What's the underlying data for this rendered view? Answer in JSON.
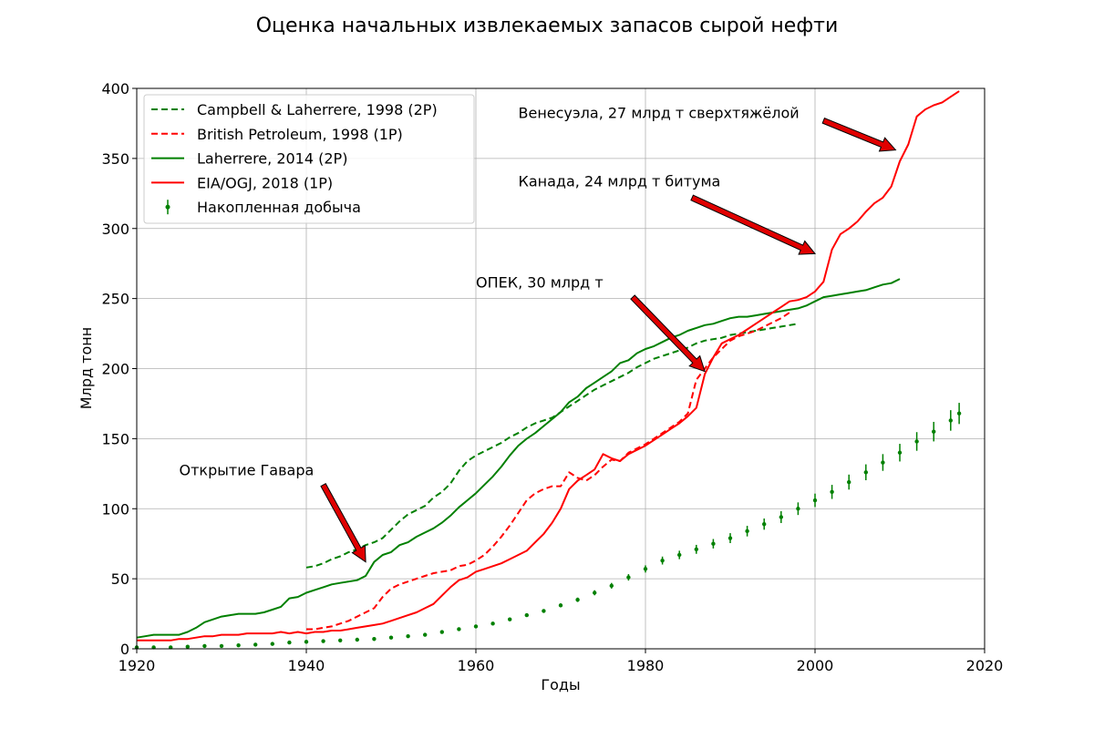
{
  "chart_data": {
    "type": "line",
    "title": "Оценка начальных извлекаемых запасов сырой нефти",
    "xlabel": "Годы",
    "ylabel": "Млрд тонн",
    "xlim": [
      1920,
      2020
    ],
    "ylim": [
      0,
      400
    ],
    "xticks": [
      1920,
      1940,
      1960,
      1980,
      2000,
      2020
    ],
    "yticks": [
      0,
      50,
      100,
      150,
      200,
      250,
      300,
      350,
      400
    ],
    "grid": true,
    "legend_position": "top-left",
    "series": [
      {
        "name": "Campbell & Laherrere, 1998 (2P)",
        "color": "#008000",
        "style": "dashed",
        "x": [
          1940,
          1941,
          1942,
          1943,
          1944,
          1945,
          1946,
          1947,
          1948,
          1949,
          1950,
          1951,
          1952,
          1953,
          1954,
          1955,
          1956,
          1957,
          1958,
          1959,
          1960,
          1961,
          1962,
          1963,
          1964,
          1965,
          1966,
          1967,
          1968,
          1969,
          1970,
          1971,
          1972,
          1973,
          1974,
          1975,
          1976,
          1977,
          1978,
          1979,
          1980,
          1981,
          1982,
          1983,
          1984,
          1985,
          1986,
          1987,
          1988,
          1989,
          1990,
          1991,
          1992,
          1993,
          1994,
          1995,
          1996,
          1997,
          1998
        ],
        "y": [
          58,
          59,
          61,
          64,
          66,
          69,
          71,
          74,
          76,
          79,
          85,
          91,
          96,
          99,
          102,
          108,
          112,
          118,
          127,
          134,
          138,
          141,
          144,
          147,
          151,
          154,
          158,
          161,
          163,
          165,
          169,
          173,
          177,
          181,
          185,
          188,
          191,
          194,
          197,
          201,
          204,
          207,
          209,
          211,
          213,
          215,
          218,
          220,
          221,
          222,
          224,
          225,
          226,
          227,
          228,
          229,
          230,
          231,
          232
        ]
      },
      {
        "name": "British Petroleum, 1998 (1P)",
        "color": "#ff0000",
        "style": "dashed",
        "x": [
          1940,
          1941,
          1942,
          1943,
          1944,
          1945,
          1946,
          1947,
          1948,
          1949,
          1950,
          1951,
          1952,
          1953,
          1954,
          1955,
          1956,
          1957,
          1958,
          1959,
          1960,
          1961,
          1962,
          1963,
          1964,
          1965,
          1966,
          1967,
          1968,
          1969,
          1970,
          1971,
          1972,
          1973,
          1974,
          1975,
          1976,
          1977,
          1978,
          1979,
          1980,
          1981,
          1982,
          1983,
          1984,
          1985,
          1986,
          1987,
          1988,
          1989,
          1990,
          1991,
          1992,
          1993,
          1994,
          1995,
          1996,
          1997
        ],
        "y": [
          14,
          14,
          15,
          16,
          18,
          20,
          23,
          26,
          29,
          37,
          43,
          46,
          48,
          50,
          52,
          54,
          55,
          56,
          59,
          60,
          63,
          67,
          73,
          80,
          88,
          97,
          106,
          111,
          114,
          116,
          116,
          126,
          122,
          120,
          124,
          130,
          135,
          134,
          140,
          143,
          146,
          150,
          154,
          158,
          162,
          168,
          192,
          200,
          208,
          214,
          220,
          223,
          225,
          227,
          230,
          233,
          236,
          240
        ]
      },
      {
        "name": "Laherrere, 2014 (2P)",
        "color": "#008000",
        "style": "solid",
        "x": [
          1920,
          1921,
          1922,
          1923,
          1924,
          1925,
          1926,
          1927,
          1928,
          1929,
          1930,
          1931,
          1932,
          1933,
          1934,
          1935,
          1936,
          1937,
          1938,
          1939,
          1940,
          1941,
          1942,
          1943,
          1944,
          1945,
          1946,
          1947,
          1948,
          1949,
          1950,
          1951,
          1952,
          1953,
          1954,
          1955,
          1956,
          1957,
          1958,
          1959,
          1960,
          1961,
          1962,
          1963,
          1964,
          1965,
          1966,
          1967,
          1968,
          1969,
          1970,
          1971,
          1972,
          1973,
          1974,
          1975,
          1976,
          1977,
          1978,
          1979,
          1980,
          1981,
          1982,
          1983,
          1984,
          1985,
          1986,
          1987,
          1988,
          1989,
          1990,
          1991,
          1992,
          1993,
          1994,
          1995,
          1996,
          1997,
          1998,
          1999,
          2000,
          2001,
          2002,
          2003,
          2004,
          2005,
          2006,
          2007,
          2008,
          2009,
          2010
        ],
        "y": [
          8,
          9,
          10,
          10,
          10,
          10,
          12,
          15,
          19,
          21,
          23,
          24,
          25,
          25,
          25,
          26,
          28,
          30,
          36,
          37,
          40,
          42,
          44,
          46,
          47,
          48,
          49,
          52,
          62,
          67,
          69,
          74,
          76,
          80,
          83,
          86,
          90,
          95,
          101,
          106,
          111,
          117,
          123,
          130,
          138,
          145,
          150,
          154,
          159,
          164,
          169,
          176,
          180,
          186,
          190,
          194,
          198,
          204,
          206,
          211,
          214,
          216,
          219,
          222,
          224,
          227,
          229,
          231,
          232,
          234,
          236,
          237,
          237,
          238,
          239,
          240,
          241,
          242,
          243,
          245,
          248,
          251,
          252,
          253,
          254,
          255,
          256,
          258,
          260,
          261,
          264
        ]
      },
      {
        "name": "EIA/OGJ, 2018 (1P)",
        "color": "#ff0000",
        "style": "solid",
        "x": [
          1920,
          1921,
          1922,
          1923,
          1924,
          1925,
          1926,
          1927,
          1928,
          1929,
          1930,
          1931,
          1932,
          1933,
          1934,
          1935,
          1936,
          1937,
          1938,
          1939,
          1940,
          1941,
          1942,
          1943,
          1944,
          1945,
          1946,
          1947,
          1948,
          1949,
          1950,
          1951,
          1952,
          1953,
          1954,
          1955,
          1956,
          1957,
          1958,
          1959,
          1960,
          1961,
          1962,
          1963,
          1964,
          1965,
          1966,
          1967,
          1968,
          1969,
          1970,
          1971,
          1972,
          1973,
          1974,
          1975,
          1976,
          1977,
          1978,
          1979,
          1980,
          1981,
          1982,
          1983,
          1984,
          1985,
          1986,
          1987,
          1988,
          1989,
          1990,
          1991,
          1992,
          1993,
          1994,
          1995,
          1996,
          1997,
          1998,
          1999,
          2000,
          2001,
          2002,
          2003,
          2004,
          2005,
          2006,
          2007,
          2008,
          2009,
          2010,
          2011,
          2012,
          2013,
          2014,
          2015,
          2016,
          2017
        ],
        "y": [
          6,
          6,
          6,
          6,
          6,
          7,
          7,
          8,
          9,
          9,
          10,
          10,
          10,
          11,
          11,
          11,
          11,
          12,
          11,
          12,
          11,
          12,
          12,
          13,
          13,
          14,
          15,
          16,
          17,
          18,
          20,
          22,
          24,
          26,
          29,
          32,
          38,
          44,
          49,
          51,
          55,
          57,
          59,
          61,
          64,
          67,
          70,
          76,
          82,
          90,
          100,
          114,
          120,
          124,
          128,
          139,
          136,
          134,
          139,
          142,
          145,
          149,
          153,
          157,
          161,
          166,
          172,
          196,
          208,
          218,
          221,
          224,
          228,
          232,
          236,
          240,
          244,
          248,
          249,
          251,
          255,
          262,
          285,
          296,
          300,
          305,
          312,
          318,
          322,
          330,
          348,
          360,
          380,
          385,
          388,
          390,
          394,
          398
        ]
      }
    ],
    "production": {
      "name": "Накопленная добыча",
      "color": "#008000",
      "x": [
        1920,
        1922,
        1924,
        1926,
        1928,
        1930,
        1932,
        1934,
        1936,
        1938,
        1940,
        1942,
        1944,
        1946,
        1948,
        1950,
        1952,
        1954,
        1956,
        1958,
        1960,
        1962,
        1964,
        1966,
        1968,
        1970,
        1972,
        1974,
        1976,
        1978,
        1980,
        1982,
        1984,
        1986,
        1988,
        1990,
        1992,
        1994,
        1996,
        1998,
        2000,
        2002,
        2004,
        2006,
        2008,
        2010,
        2012,
        2014,
        2016,
        2017
      ],
      "y": [
        1,
        1,
        1,
        1.5,
        2,
        2,
        2.5,
        3,
        3.5,
        4.5,
        5,
        5.5,
        6,
        6.5,
        7,
        8,
        9,
        10,
        12,
        14,
        16,
        18,
        21,
        24,
        27,
        31,
        35,
        40,
        45,
        51,
        57,
        63,
        67,
        71,
        75,
        79,
        84,
        89,
        94,
        100,
        106,
        112,
        119,
        126,
        133,
        140,
        148,
        155,
        163,
        168
      ]
    },
    "annotations": [
      {
        "text": "Открытие Гавара",
        "x": 1925,
        "y": 124,
        "arrow_from": [
          1942,
          117
        ],
        "arrow_to": [
          1947,
          62
        ]
      },
      {
        "text": "ОПЕК, 30 млрд т",
        "x": 1960,
        "y": 258,
        "arrow_from": [
          1978.5,
          251
        ],
        "arrow_to": [
          1987,
          198
        ]
      },
      {
        "text": "Канада, 24 млрд т битума",
        "x": 1965,
        "y": 330,
        "arrow_from": [
          1985.5,
          322
        ],
        "arrow_to": [
          2000,
          282
        ]
      },
      {
        "text": "Венесуэла, 27 млрд т сверхтяжёлой",
        "x": 1965,
        "y": 379,
        "arrow_from": [
          2001,
          377
        ],
        "arrow_to": [
          2009.5,
          356
        ]
      }
    ]
  }
}
